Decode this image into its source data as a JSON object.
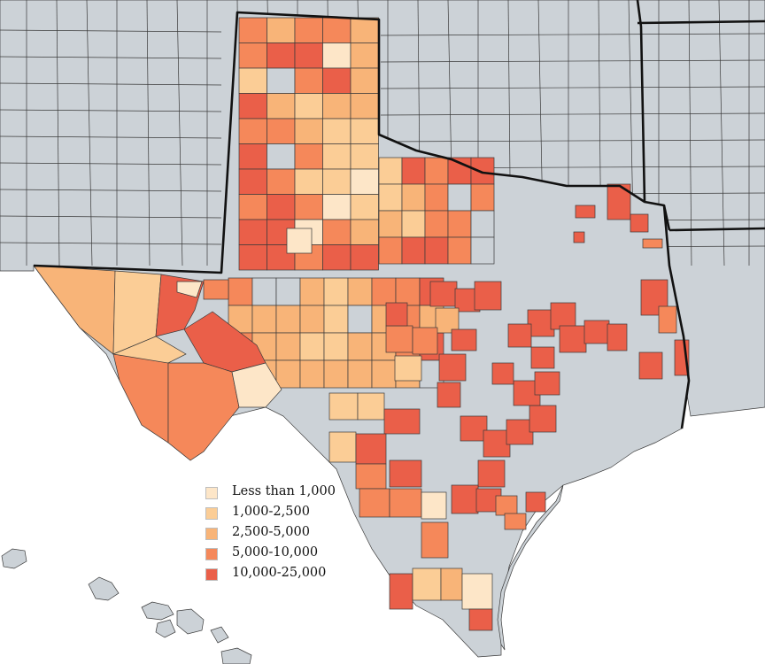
{
  "palette": {
    "no_data": "#ccd2d7",
    "water": "#ffffff",
    "border": "#111111"
  },
  "legend": {
    "items": [
      {
        "label": "Less than 1,000",
        "color": "#fde6c8"
      },
      {
        "label": "1,000-2,500",
        "color": "#fbcd96"
      },
      {
        "label": "2,500-5,000",
        "color": "#f8b478"
      },
      {
        "label": "5,000-10,000",
        "color": "#f5885a"
      },
      {
        "label": "10,000-25,000",
        "color": "#ea5f49"
      }
    ]
  }
}
